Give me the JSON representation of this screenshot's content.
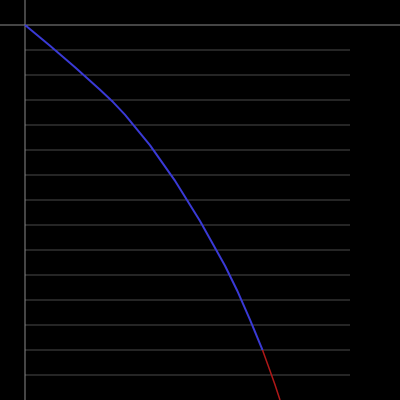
{
  "chart_data": {
    "type": "line",
    "title": "",
    "xlabel": "",
    "ylabel": "",
    "grid": true,
    "legend": "none",
    "xlim": [
      0,
      13
    ],
    "ylim": [
      0,
      15
    ],
    "gridlines_y": [
      1,
      2,
      3,
      4,
      5,
      6,
      7,
      8,
      9,
      10,
      11,
      12,
      13,
      14
    ],
    "series": [
      {
        "color": "#3a3ad6",
        "points": [
          [
            0,
            15
          ],
          [
            1,
            14.17
          ],
          [
            2,
            13.31
          ],
          [
            3,
            12.41
          ],
          [
            3.5,
            11.94
          ],
          [
            4,
            11.41
          ],
          [
            5,
            10.19
          ],
          [
            6,
            8.77
          ],
          [
            7,
            7.16
          ],
          [
            8,
            5.37
          ],
          [
            8.5,
            4.35
          ],
          [
            9,
            3.21
          ],
          [
            9.5,
            2.0
          ]
        ]
      },
      {
        "color": "#b01818",
        "points": [
          [
            9.5,
            2.0
          ],
          [
            9.8,
            1.17
          ],
          [
            10.0,
            0.61
          ],
          [
            10.2,
            0.0
          ]
        ]
      }
    ],
    "colors": {
      "background": "#000000",
      "axis": "#8a8a8a",
      "grid": "#4a4a4a"
    }
  }
}
